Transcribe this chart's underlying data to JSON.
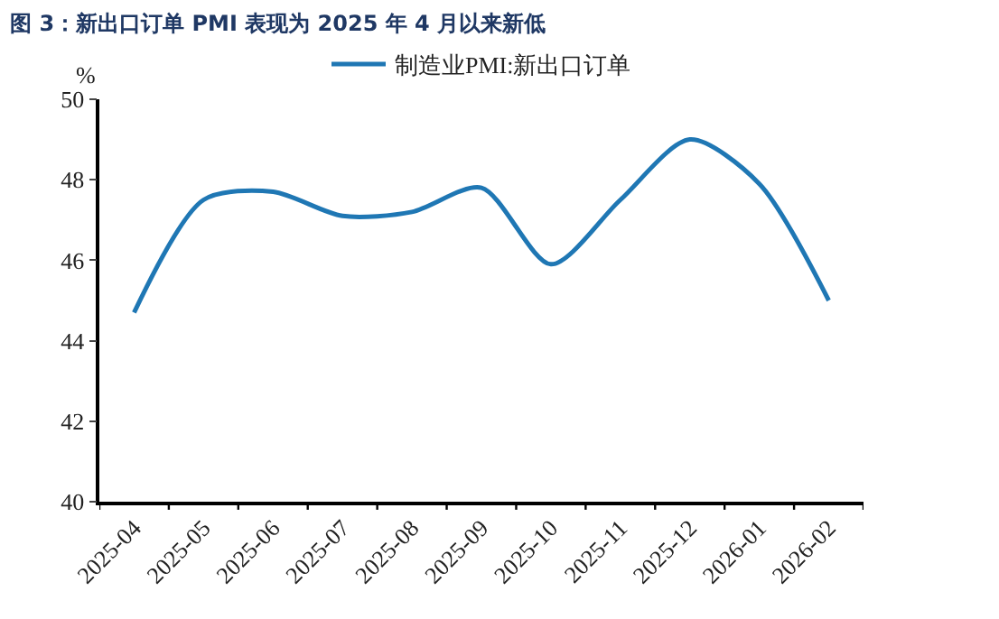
{
  "chart_data": {
    "type": "line",
    "title": "图 3：新出口订单 PMI 表现为 2025 年 4 月以来新低",
    "ylabel": "%",
    "categories": [
      "2025-04",
      "2025-05",
      "2025-06",
      "2025-07",
      "2025-08",
      "2025-09",
      "2025-10",
      "2025-11",
      "2025-12",
      "2026-01",
      "2026-02"
    ],
    "series": [
      {
        "name": "制造业PMI:新出口订单",
        "color": "#1f77b4",
        "values": [
          44.7,
          47.5,
          47.7,
          47.1,
          47.2,
          47.8,
          45.9,
          47.5,
          49.0,
          47.9,
          45.0
        ]
      }
    ],
    "ylim": [
      40,
      50
    ],
    "yticks": [
      40,
      42,
      44,
      46,
      48,
      50
    ],
    "legend": "top",
    "marker": "none",
    "line_style": "solid"
  }
}
